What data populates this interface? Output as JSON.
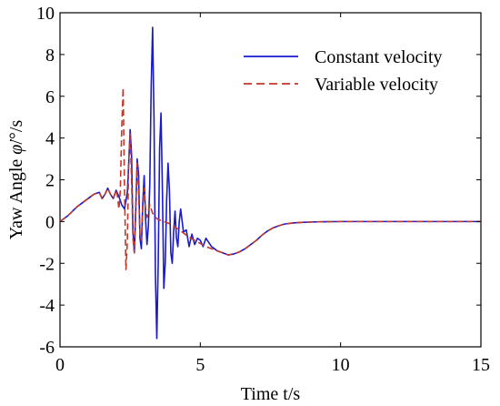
{
  "chart_data": {
    "type": "line",
    "title": "",
    "xlabel": "Time t/s",
    "ylabel_prefix": "Yaw Angle ",
    "ylabel_symbol": "φ̇",
    "ylabel_unit": "/°/s",
    "xlim": [
      0,
      15
    ],
    "ylim": [
      -6,
      10
    ],
    "xticks": [
      0,
      5,
      10,
      15
    ],
    "yticks": [
      -6,
      -4,
      -2,
      0,
      2,
      4,
      6,
      8,
      10
    ],
    "grid": false,
    "legend_position": "top-right",
    "series": [
      {
        "name": "Constant velocity",
        "color": "#1a1acc",
        "dash": "solid",
        "x": [
          0,
          0.3,
          0.6,
          0.9,
          1.2,
          1.4,
          1.5,
          1.6,
          1.7,
          1.8,
          1.9,
          2.0,
          2.1,
          2.2,
          2.3,
          2.4,
          2.45,
          2.5,
          2.55,
          2.6,
          2.65,
          2.7,
          2.75,
          2.8,
          2.85,
          2.9,
          2.95,
          3.0,
          3.05,
          3.1,
          3.15,
          3.2,
          3.25,
          3.3,
          3.35,
          3.4,
          3.45,
          3.5,
          3.55,
          3.6,
          3.65,
          3.7,
          3.75,
          3.8,
          3.85,
          3.9,
          3.95,
          4.0,
          4.05,
          4.1,
          4.15,
          4.2,
          4.25,
          4.3,
          4.4,
          4.5,
          4.6,
          4.7,
          4.8,
          4.9,
          5.0,
          5.1,
          5.2,
          5.3,
          5.4,
          5.5,
          5.6,
          5.8,
          6.0,
          6.2,
          6.4,
          6.6,
          6.8,
          7.0,
          7.2,
          7.4,
          7.6,
          7.8,
          8.0,
          8.3,
          8.6,
          9.0,
          9.5,
          10.0,
          10.5,
          11.0,
          12.0,
          13.0,
          14.0,
          15.0
        ],
        "y": [
          0,
          0.3,
          0.7,
          1.0,
          1.3,
          1.4,
          1.1,
          1.3,
          1.6,
          1.3,
          1.1,
          1.5,
          1.2,
          0.8,
          0.6,
          1.4,
          2.8,
          4.4,
          3.2,
          -0.5,
          -1.5,
          0.5,
          3.0,
          2.3,
          -0.8,
          -1.3,
          0.9,
          2.2,
          0.1,
          -1.1,
          -0.2,
          1.8,
          6.5,
          9.3,
          5.0,
          -2.5,
          -5.6,
          -2.0,
          3.5,
          5.2,
          1.5,
          -3.2,
          -2.0,
          1.0,
          2.8,
          1.5,
          -1.5,
          -2.0,
          -0.5,
          0.5,
          -0.8,
          -1.2,
          0.0,
          0.6,
          -0.5,
          -0.4,
          -1.2,
          -0.6,
          -1.1,
          -0.8,
          -0.9,
          -1.2,
          -0.8,
          -1.0,
          -1.2,
          -1.3,
          -1.4,
          -1.5,
          -1.6,
          -1.55,
          -1.45,
          -1.3,
          -1.1,
          -0.9,
          -0.65,
          -0.45,
          -0.3,
          -0.2,
          -0.12,
          -0.07,
          -0.04,
          -0.02,
          -0.01,
          0,
          0,
          0,
          0,
          0,
          0,
          0
        ]
      },
      {
        "name": "Variable velocity",
        "color": "#c0392b",
        "dash": "dashed",
        "x": [
          0,
          0.3,
          0.6,
          0.9,
          1.2,
          1.4,
          1.5,
          1.6,
          1.7,
          1.8,
          1.9,
          2.0,
          2.05,
          2.1,
          2.15,
          2.2,
          2.25,
          2.3,
          2.35,
          2.4,
          2.45,
          2.5,
          2.55,
          2.6,
          2.65,
          2.7,
          2.75,
          2.8,
          2.85,
          2.9,
          2.95,
          3.0,
          3.05,
          3.1,
          3.15,
          3.2,
          3.3,
          3.4,
          3.5,
          3.6,
          3.7,
          3.8,
          3.9,
          4.0,
          4.2,
          4.4,
          4.6,
          4.8,
          5.0,
          5.2,
          5.4,
          5.6,
          5.8,
          6.0,
          6.2,
          6.4,
          6.6,
          6.8,
          7.0,
          7.2,
          7.4,
          7.6,
          7.8,
          8.0,
          8.3,
          8.6,
          9.0,
          9.5,
          10.0,
          10.5,
          11.0,
          12.0,
          13.0,
          14.0,
          15.0
        ],
        "y": [
          0,
          0.3,
          0.7,
          1.0,
          1.3,
          1.4,
          1.1,
          1.3,
          1.6,
          1.3,
          1.1,
          1.5,
          1.2,
          0.6,
          1.5,
          4.5,
          6.4,
          1.5,
          -2.3,
          -1.0,
          3.0,
          4.2,
          2.0,
          -0.8,
          -1.5,
          0.8,
          2.8,
          1.5,
          -0.6,
          -0.9,
          0.7,
          1.6,
          0.6,
          0.2,
          0.5,
          0.8,
          0.4,
          0.2,
          0.1,
          0.05,
          0.0,
          -0.05,
          -0.1,
          -0.2,
          -0.35,
          -0.55,
          -0.75,
          -0.9,
          -1.05,
          -1.2,
          -1.3,
          -1.4,
          -1.5,
          -1.6,
          -1.55,
          -1.45,
          -1.3,
          -1.1,
          -0.9,
          -0.65,
          -0.45,
          -0.3,
          -0.2,
          -0.12,
          -0.07,
          -0.04,
          -0.02,
          -0.01,
          0,
          0,
          0,
          0,
          0,
          0,
          0
        ]
      }
    ]
  }
}
